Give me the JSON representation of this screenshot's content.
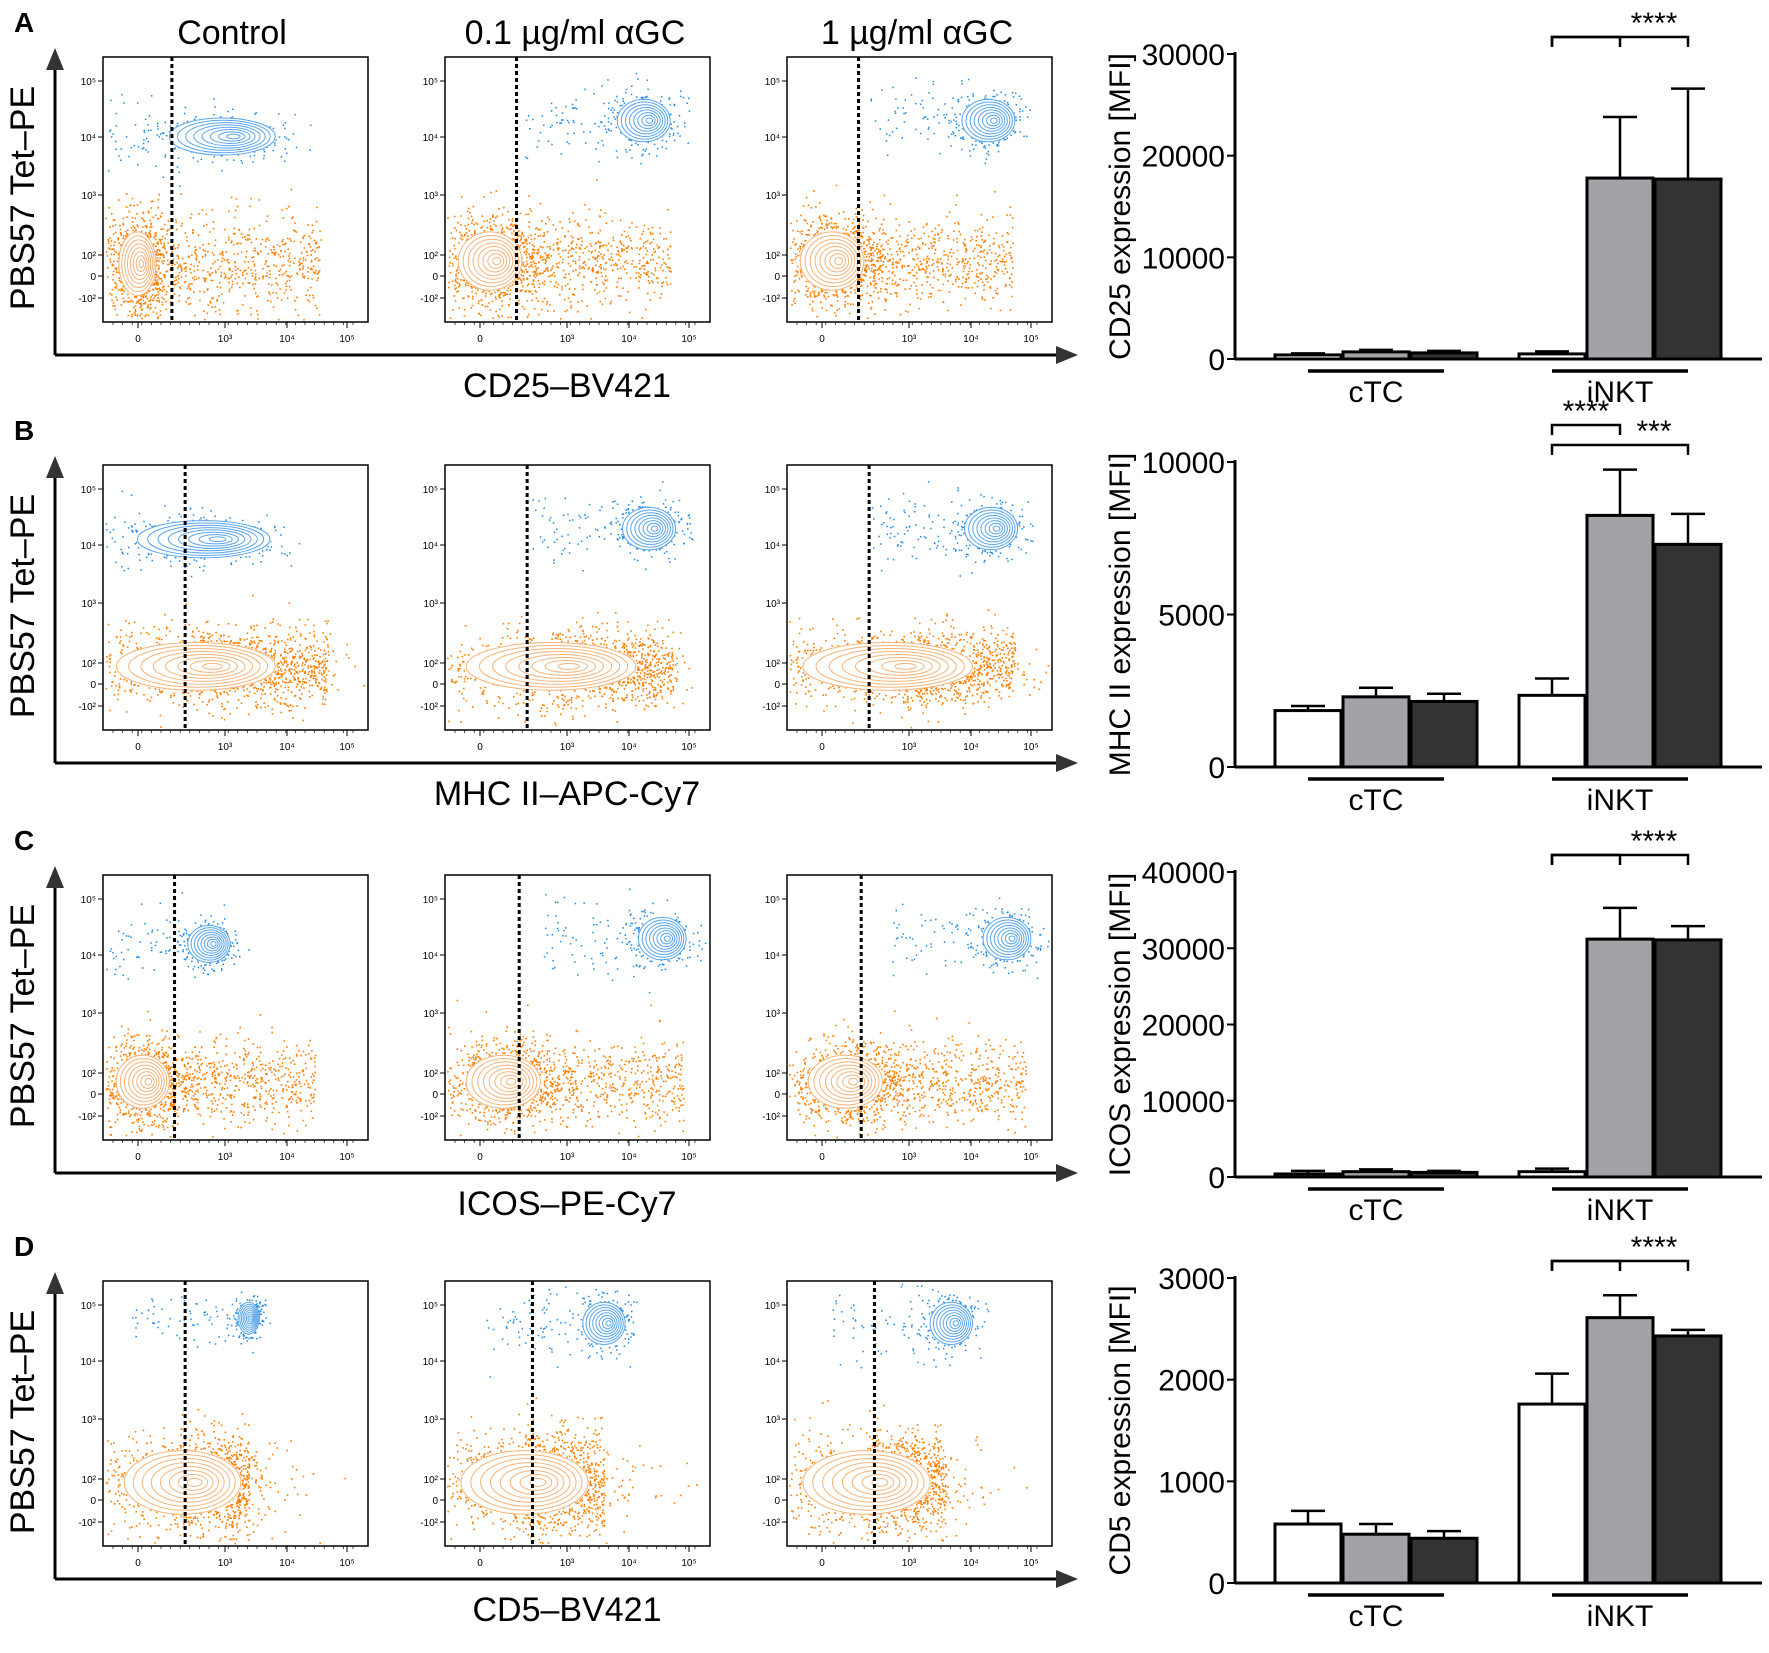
{
  "figure": {
    "column_titles": [
      "Control",
      "0.1 µg/ml αGC",
      "1 µg/ml αGC"
    ],
    "flow_y_label": "PBS57 Tet–PE",
    "flow_y_ticks": [
      "10⁵",
      "10⁴",
      "10³",
      "10²",
      "0",
      "-10²"
    ],
    "flow_x_ticks": [
      "0",
      "10³",
      "10⁴",
      "10⁵"
    ],
    "colors": {
      "tetramer_positive": "#1e88e5",
      "tetramer_negative": "#ff7f00",
      "bar_control": "#ffffff",
      "bar_low": "#a3a3a7",
      "bar_high": "#333333"
    }
  },
  "panels": [
    {
      "letter": "A",
      "flow_x_label": "CD25–BV421"
    },
    {
      "letter": "B",
      "flow_x_label": "MHC II–APC-Cy7"
    },
    {
      "letter": "C",
      "flow_x_label": "ICOS–PE-Cy7"
    },
    {
      "letter": "D",
      "flow_x_label": "CD5–BV421"
    }
  ],
  "chart_data": [
    {
      "type": "bar",
      "title": "",
      "xlabel": "",
      "ylabel": "CD25 expression [MFI]",
      "ylim": [
        0,
        30000
      ],
      "yticks": [
        "0",
        "10000",
        "20000",
        "30000"
      ],
      "categories": [
        "cTC",
        "iNKT"
      ],
      "series": [
        {
          "color": "#ffffff",
          "values": [
            400,
            500
          ],
          "errors": [
            150,
            250
          ]
        },
        {
          "color": "#a3a3a7",
          "values": [
            700,
            17800
          ],
          "errors": [
            200,
            6000
          ]
        },
        {
          "color": "#333333",
          "values": [
            600,
            17700
          ],
          "errors": [
            200,
            8900
          ]
        }
      ],
      "significance": [
        {
          "category": "iNKT",
          "from": 0,
          "to": 1,
          "label": ""
        },
        {
          "category": "iNKT",
          "from": 0,
          "to": 2,
          "label": "****"
        }
      ]
    },
    {
      "type": "bar",
      "title": "",
      "xlabel": "",
      "ylabel": "MHC II expression [MFI]",
      "ylim": [
        0,
        10000
      ],
      "yticks": [
        "0",
        "5000",
        "10000"
      ],
      "categories": [
        "cTC",
        "iNKT"
      ],
      "series": [
        {
          "color": "#ffffff",
          "values": [
            1850,
            2350
          ],
          "errors": [
            150,
            550
          ]
        },
        {
          "color": "#a3a3a7",
          "values": [
            2300,
            8250
          ],
          "errors": [
            300,
            1500
          ]
        },
        {
          "color": "#333333",
          "values": [
            2150,
            7300
          ],
          "errors": [
            250,
            1000
          ]
        }
      ],
      "significance": [
        {
          "category": "iNKT",
          "from": 0,
          "to": 1,
          "label": "****"
        },
        {
          "category": "iNKT",
          "from": 0,
          "to": 2,
          "label": "***"
        }
      ]
    },
    {
      "type": "bar",
      "title": "",
      "xlabel": "",
      "ylabel": "ICOS expression [MFI]",
      "ylim": [
        0,
        40000
      ],
      "yticks": [
        "0",
        "10000",
        "20000",
        "30000",
        "40000"
      ],
      "categories": [
        "cTC",
        "iNKT"
      ],
      "series": [
        {
          "color": "#ffffff",
          "values": [
            400,
            700
          ],
          "errors": [
            400,
            400
          ]
        },
        {
          "color": "#a3a3a7",
          "values": [
            700,
            31200
          ],
          "errors": [
            300,
            4100
          ]
        },
        {
          "color": "#333333",
          "values": [
            600,
            31100
          ],
          "errors": [
            200,
            1800
          ]
        }
      ],
      "significance": [
        {
          "category": "iNKT",
          "from": 0,
          "to": 1,
          "label": ""
        },
        {
          "category": "iNKT",
          "from": 0,
          "to": 2,
          "label": "****"
        }
      ]
    },
    {
      "type": "bar",
      "title": "",
      "xlabel": "",
      "ylabel": "CD5 expression [MFI]",
      "ylim": [
        0,
        3000
      ],
      "yticks": [
        "0",
        "1000",
        "2000",
        "3000"
      ],
      "categories": [
        "cTC",
        "iNKT"
      ],
      "series": [
        {
          "color": "#ffffff",
          "values": [
            580,
            1760
          ],
          "errors": [
            130,
            300
          ]
        },
        {
          "color": "#a3a3a7",
          "values": [
            480,
            2610
          ],
          "errors": [
            100,
            220
          ]
        },
        {
          "color": "#333333",
          "values": [
            440,
            2430
          ],
          "errors": [
            70,
            60
          ]
        }
      ],
      "significance": [
        {
          "category": "iNKT",
          "from": 0,
          "to": 1,
          "label": ""
        },
        {
          "category": "iNKT",
          "from": 0,
          "to": 2,
          "label": "****"
        }
      ]
    }
  ]
}
